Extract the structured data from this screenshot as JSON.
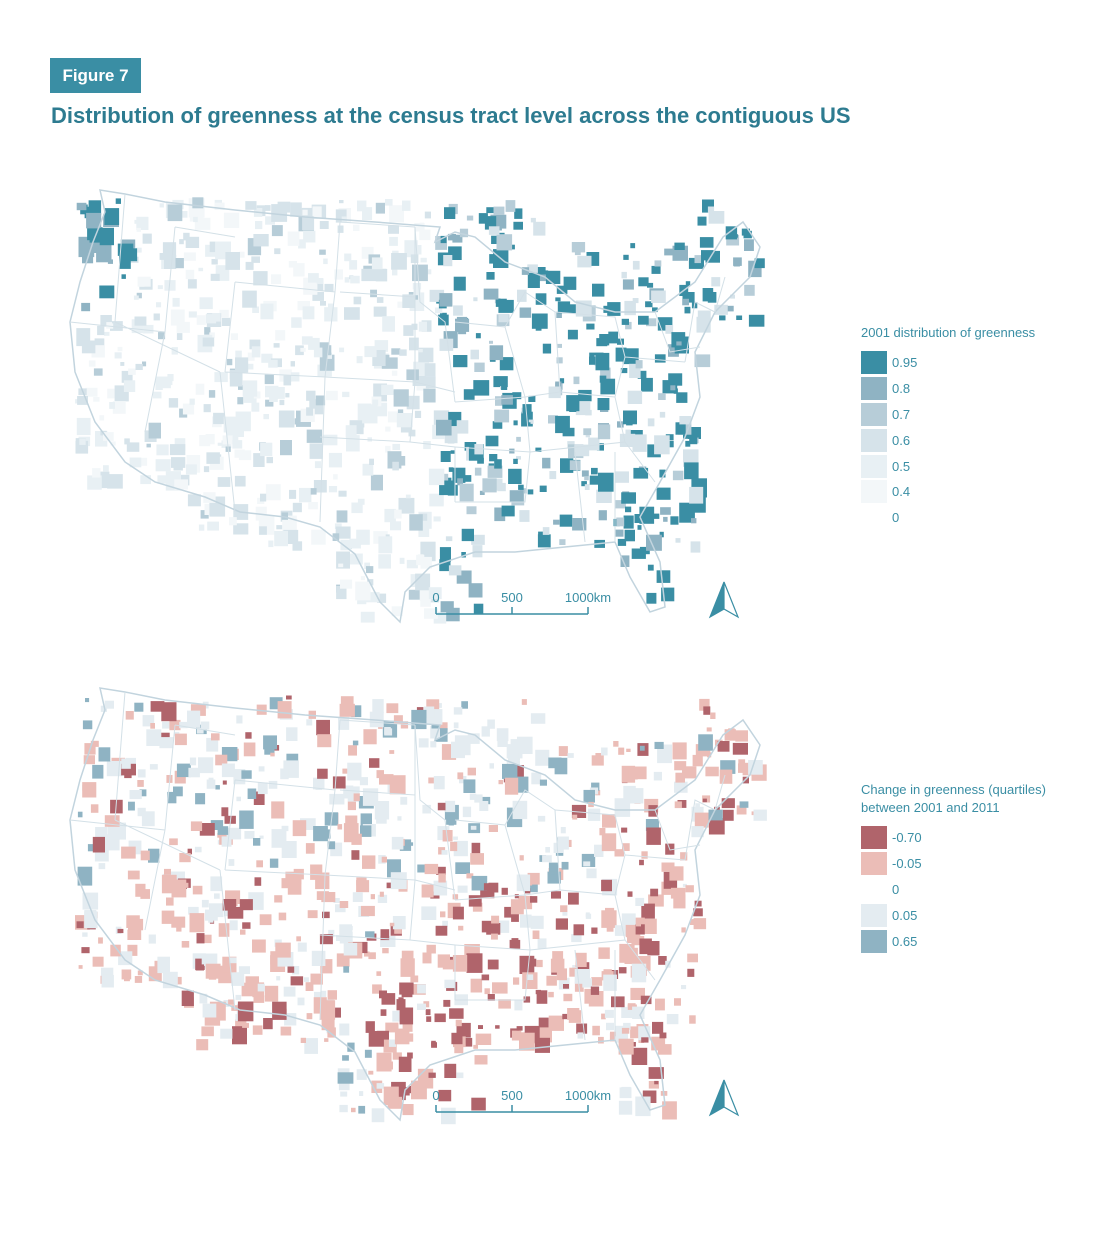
{
  "figure": {
    "badge": "Figure 7",
    "title": "Distribution of greenness at the census tract level across the contiguous US"
  },
  "scale_bar": {
    "labels": [
      "0",
      "500",
      "1000km"
    ]
  },
  "legend_top": {
    "title": "2001 distribution of greenness",
    "items": [
      {
        "label": "0.95",
        "color": "#3a8ea4"
      },
      {
        "label": "0.8",
        "color": "#8fb3c3"
      },
      {
        "label": "0.7",
        "color": "#b7cdd8"
      },
      {
        "label": "0.6",
        "color": "#d6e3ea"
      },
      {
        "label": "0.5",
        "color": "#e8f0f4"
      },
      {
        "label": "0.4",
        "color": "#f3f7f9"
      },
      {
        "label": "0",
        "color": "#ffffff"
      }
    ]
  },
  "legend_bottom": {
    "title_line1": "Change in greenness (quartiles)",
    "title_line2": "between 2001 and 2011",
    "items": [
      {
        "label": "-0.70",
        "color": "#b0646b"
      },
      {
        "label": "-0.05",
        "color": "#ebbdb7"
      },
      {
        "label": "0",
        "color": "#ffffff"
      },
      {
        "label": "0.05",
        "color": "#e4ecf1"
      },
      {
        "label": "0.65",
        "color": "#8fb3c3"
      }
    ]
  },
  "colors": {
    "accent": "#3a8ea4",
    "title": "#2d7b90",
    "border": "#c2d4de"
  }
}
